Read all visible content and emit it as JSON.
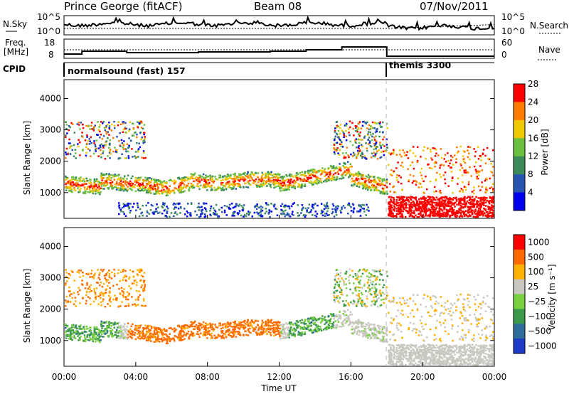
{
  "header": {
    "station": "Prince George (fitACF)",
    "beam": "Beam 08",
    "date": "07/Nov/2011"
  },
  "chart_data": [
    {
      "type": "line",
      "panel": "noise",
      "left_label": "N.Sky",
      "right_label": "N.Search",
      "left_ticks": [
        "10^5",
        "10^0"
      ],
      "right_ticks": [
        "10^5",
        "10^0"
      ]
    },
    {
      "type": "line",
      "panel": "frequency",
      "left_label_line1": "Freq.",
      "left_label_line2": "[MHz]",
      "right_label": "Nave",
      "left_ticks": [
        "18",
        "8"
      ],
      "right_ticks": [
        "60",
        "0"
      ],
      "freq_steps": [
        {
          "start": 0.0,
          "end": 1.0,
          "value": 10
        },
        {
          "start": 1.0,
          "end": 3.5,
          "value": 12
        },
        {
          "start": 3.5,
          "end": 7.5,
          "value": 11
        },
        {
          "start": 7.5,
          "end": 11.5,
          "value": 11.5
        },
        {
          "start": 11.5,
          "end": 13.5,
          "value": 12
        },
        {
          "start": 13.5,
          "end": 15.5,
          "value": 13
        },
        {
          "start": 15.5,
          "end": 18.0,
          "value": 15
        },
        {
          "start": 18.0,
          "end": 24.0,
          "value": 8.5
        }
      ]
    },
    {
      "type": "table",
      "panel": "cpid",
      "label": "CPID",
      "segments": [
        {
          "start": 0,
          "end": 18,
          "text": "normalsound (fast) 157"
        },
        {
          "start": 18,
          "end": 24,
          "text": "themis 3300"
        }
      ]
    },
    {
      "type": "heatmap",
      "panel": "power",
      "ylabel": "Slant Range [km]",
      "ylim": [
        180,
        4600
      ],
      "yticks": [
        "1000",
        "2000",
        "3000",
        "4000"
      ],
      "colorbar_label": "Power [dB]",
      "colorbar_ticks": [
        "4",
        "8",
        "12",
        "16",
        "20",
        "24",
        "28"
      ],
      "colors": [
        "#0000ee",
        "#2855b0",
        "#3c8c5a",
        "#6cc040",
        "#f0c800",
        "#ff7a00",
        "#ff0000"
      ],
      "background": "#ffffff"
    },
    {
      "type": "heatmap",
      "panel": "velocity",
      "ylabel": "Slant Range [km]",
      "ylim": [
        180,
        4600
      ],
      "yticks": [
        "1000",
        "2000",
        "3000",
        "4000"
      ],
      "xlabel": "Time UT",
      "xticks": [
        "00:00",
        "04:00",
        "08:00",
        "12:00",
        "16:00",
        "20:00",
        "00:00"
      ],
      "colorbar_label": "Velocity [m s⁻¹]",
      "colorbar_ticks": [
        "1000",
        "500",
        "100",
        "25",
        "−25",
        "−100",
        "−500",
        "−1000"
      ],
      "colors": [
        "#1e3cc8",
        "#2f6e9a",
        "#3d9a4a",
        "#7ad040",
        "#c8c8c0",
        "#ffb000",
        "#ff6a00",
        "#ff0000"
      ],
      "background": "#ffffff"
    }
  ]
}
